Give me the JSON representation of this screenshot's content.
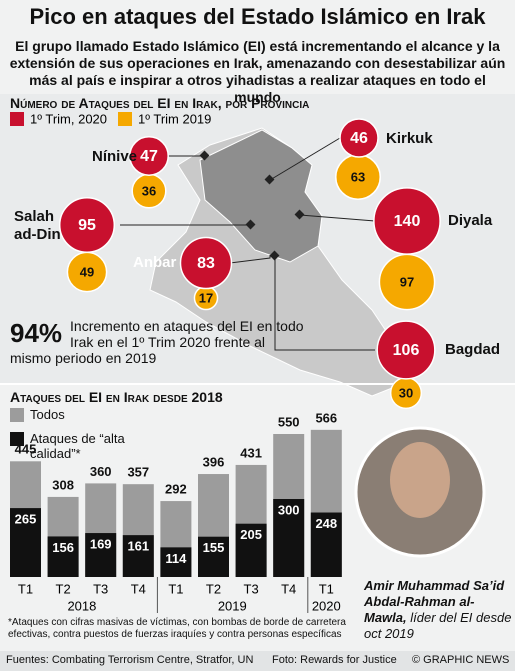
{
  "header": {
    "title": "Pico en ataques del Estado Islámico en Irak",
    "subtitle": "El grupo llamado Estado Islámico (EI) está incrementando el alcance y la extensión de sus operaciones en Irak, amenazando con desestabilizar aún más al país e inspirar a otros yihadistas a realizar ataques en todo el mundo"
  },
  "chart_data": [
    {
      "type": "bubble_map",
      "title": "Número de Ataques del EI en Irak, por Provincia",
      "categories": [
        "Nínive",
        "Kirkuk",
        "Salah ad-Din",
        "Diyala",
        "Anbar",
        "Bagdad"
      ],
      "series": [
        {
          "name": "1º Trim, 2020",
          "color": "#c8102e",
          "values": [
            47,
            46,
            95,
            140,
            83,
            106
          ]
        },
        {
          "name": "1º Trim 2019",
          "color": "#f5a800",
          "values": [
            36,
            63,
            49,
            97,
            17,
            30
          ]
        }
      ]
    },
    {
      "type": "bar",
      "title": "Ataques del EI en Irak desde 2018",
      "categories": [
        "T1",
        "T2",
        "T3",
        "T4",
        "T1",
        "T2",
        "T3",
        "T4",
        "T1"
      ],
      "years": [
        "2018",
        "2019",
        "2020"
      ],
      "series": [
        {
          "name": "Todos",
          "color": "#9c9c9c",
          "values": [
            445,
            308,
            360,
            357,
            292,
            396,
            431,
            550,
            566
          ]
        },
        {
          "name": "Ataques de “alta calidad”*",
          "color": "#111111",
          "values": [
            265,
            156,
            169,
            161,
            114,
            155,
            205,
            300,
            248
          ]
        }
      ]
    }
  ],
  "stat": {
    "value": "94%",
    "text": "Incremento en ataques del EI en todo Irak en el 1º Trim 2020 frente al mismo periodo en 2019"
  },
  "footnote": "*Ataques con cifras masivas de víctimas, con bombas de borde de carretera efectivas, contra puestos de fuerzas iraquíes y contra personas específicas",
  "photo_caption": {
    "name": "Amir Muhammad Sa’id Abdal-Rahman al-Mawla,",
    "role": "líder del EI desde oct 2019"
  },
  "footer": {
    "sources": "Fuentes: Combating Terrorism Centre, Stratfor, UN",
    "photo": "Foto: Rewards for Justice",
    "credit": "© GRAPHIC NEWS"
  }
}
